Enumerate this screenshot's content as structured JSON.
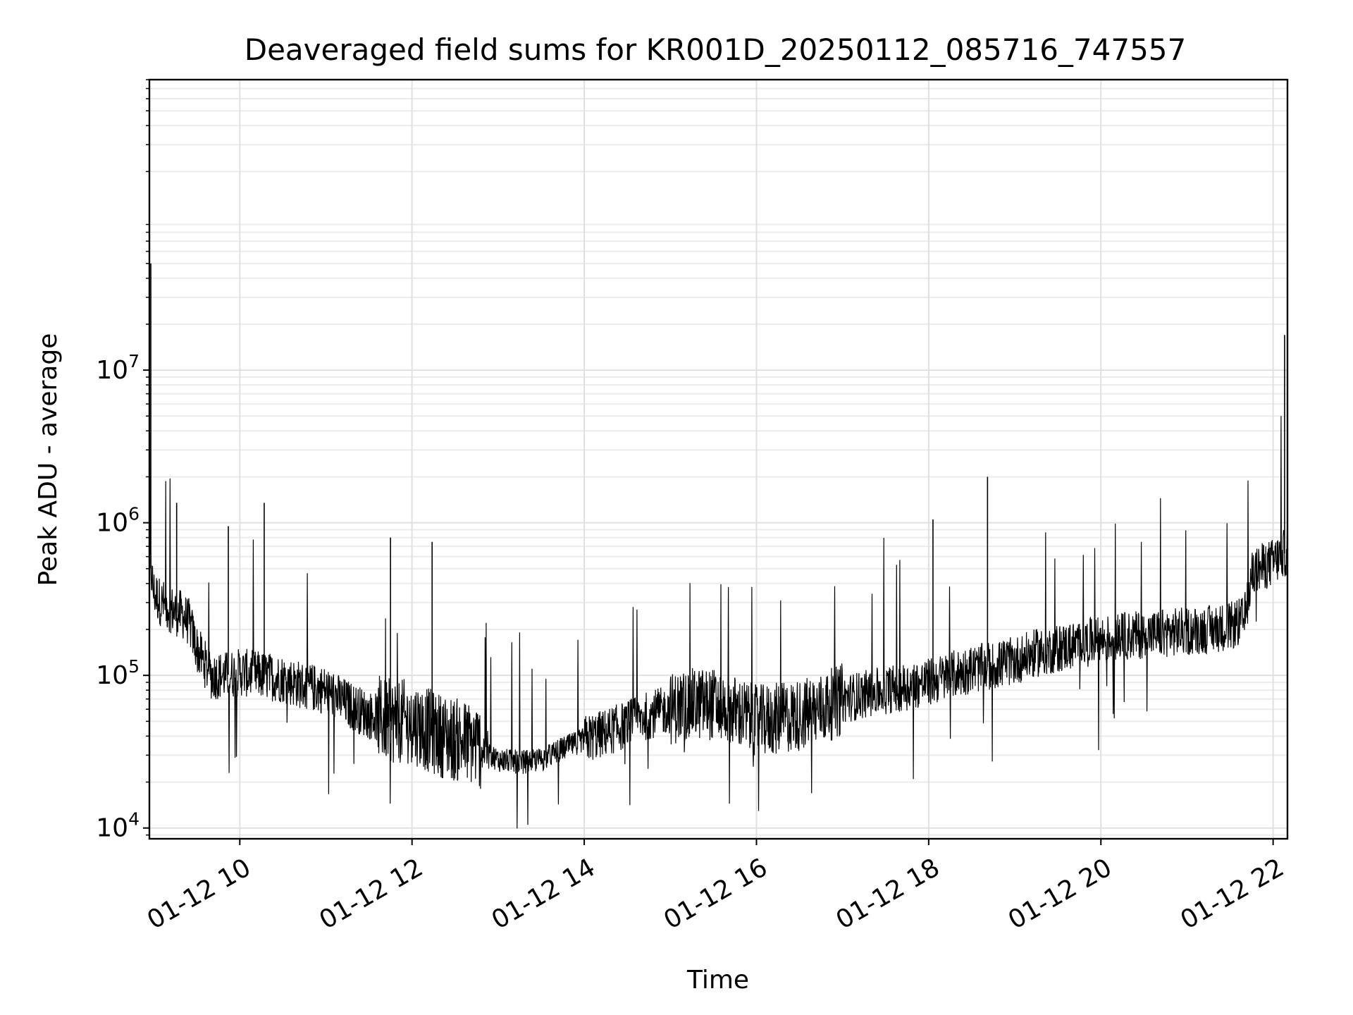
{
  "chart_data": {
    "type": "line",
    "title": "Deaveraged field sums for KR001D_20250112_085716_747557",
    "xlabel": "Time",
    "ylabel": "Peak ADU - average",
    "xscale": "time",
    "yscale": "log",
    "xlim": [
      "2025-01-12 08:57",
      "2025-01-12 22:10"
    ],
    "ylim": [
      8500,
      800000000
    ],
    "grid": true,
    "legend": "none",
    "line_color": "#000000",
    "x_ticks": [
      {
        "at": "2025-01-12 10:00",
        "label": "01-12 10"
      },
      {
        "at": "2025-01-12 12:00",
        "label": "01-12 12"
      },
      {
        "at": "2025-01-12 14:00",
        "label": "01-12 14"
      },
      {
        "at": "2025-01-12 16:00",
        "label": "01-12 16"
      },
      {
        "at": "2025-01-12 18:00",
        "label": "01-12 18"
      },
      {
        "at": "2025-01-12 20:00",
        "label": "01-12 20"
      },
      {
        "at": "2025-01-12 22:00",
        "label": "01-12 22"
      }
    ],
    "y_ticks": [
      {
        "value": 10000,
        "base": "10",
        "exp": "4"
      },
      {
        "value": 100000,
        "base": "10",
        "exp": "5"
      },
      {
        "value": 1000000,
        "base": "10",
        "exp": "6"
      },
      {
        "value": 10000000,
        "base": "10",
        "exp": "7"
      }
    ],
    "series": [
      {
        "x": [
          "2025-01-12 08:57",
          "2025-01-12 09:00",
          "2025-01-12 09:05",
          "2025-01-12 09:10",
          "2025-01-12 09:15",
          "2025-01-12 09:20",
          "2025-01-12 09:25",
          "2025-01-12 09:30",
          "2025-01-12 09:40",
          "2025-01-12 09:50",
          "2025-01-12 10:00",
          "2025-01-12 10:15",
          "2025-01-12 10:30",
          "2025-01-12 10:45",
          "2025-01-12 11:00",
          "2025-01-12 11:15",
          "2025-01-12 11:30",
          "2025-01-12 11:45",
          "2025-01-12 12:00",
          "2025-01-12 12:15",
          "2025-01-12 12:30",
          "2025-01-12 12:45",
          "2025-01-12 13:00",
          "2025-01-12 13:15",
          "2025-01-12 13:30",
          "2025-01-12 13:45",
          "2025-01-12 14:00",
          "2025-01-12 14:15",
          "2025-01-12 14:30",
          "2025-01-12 14:45",
          "2025-01-12 15:00",
          "2025-01-12 15:15",
          "2025-01-12 15:30",
          "2025-01-12 15:45",
          "2025-01-12 16:00",
          "2025-01-12 16:15",
          "2025-01-12 16:30",
          "2025-01-12 16:45",
          "2025-01-12 17:00",
          "2025-01-12 17:15",
          "2025-01-12 17:30",
          "2025-01-12 17:45",
          "2025-01-12 18:00",
          "2025-01-12 18:15",
          "2025-01-12 18:30",
          "2025-01-12 18:45",
          "2025-01-12 19:00",
          "2025-01-12 19:15",
          "2025-01-12 19:30",
          "2025-01-12 19:45",
          "2025-01-12 20:00",
          "2025-01-12 20:15",
          "2025-01-12 20:30",
          "2025-01-12 20:45",
          "2025-01-12 21:00",
          "2025-01-12 21:15",
          "2025-01-12 21:30",
          "2025-01-12 21:40",
          "2025-01-12 21:45",
          "2025-01-12 21:50",
          "2025-01-12 22:00",
          "2025-01-12 22:05",
          "2025-01-12 22:10"
        ],
        "y": [
          600000,
          350000,
          300000,
          280000,
          260000,
          250000,
          220000,
          150000,
          100000,
          100000,
          105000,
          100000,
          95000,
          85000,
          80000,
          65000,
          55000,
          50000,
          50000,
          42000,
          38000,
          35000,
          28000,
          27000,
          28000,
          33000,
          38000,
          42000,
          48000,
          55000,
          60000,
          65000,
          65000,
          58000,
          50000,
          52000,
          55000,
          60000,
          70000,
          75000,
          80000,
          85000,
          90000,
          100000,
          110000,
          115000,
          125000,
          140000,
          150000,
          160000,
          170000,
          180000,
          185000,
          190000,
          195000,
          200000,
          210000,
          230000,
          450000,
          500000,
          550000,
          600000,
          650000
        ]
      }
    ],
    "spikes": [
      {
        "x": "2025-01-12 08:58",
        "y": 50000000
      },
      {
        "x": "2025-01-12 09:16",
        "y": 1350000
      },
      {
        "x": "2025-01-12 09:52",
        "y": 950000
      },
      {
        "x": "2025-01-12 10:17",
        "y": 1350000
      },
      {
        "x": "2025-01-12 11:45",
        "y": 800000
      },
      {
        "x": "2025-01-12 12:14",
        "y": 750000
      },
      {
        "x": "2025-01-12 18:03",
        "y": 1050000
      },
      {
        "x": "2025-01-12 18:41",
        "y": 2000000
      },
      {
        "x": "2025-01-12 22:08",
        "y": 17000000
      }
    ]
  }
}
